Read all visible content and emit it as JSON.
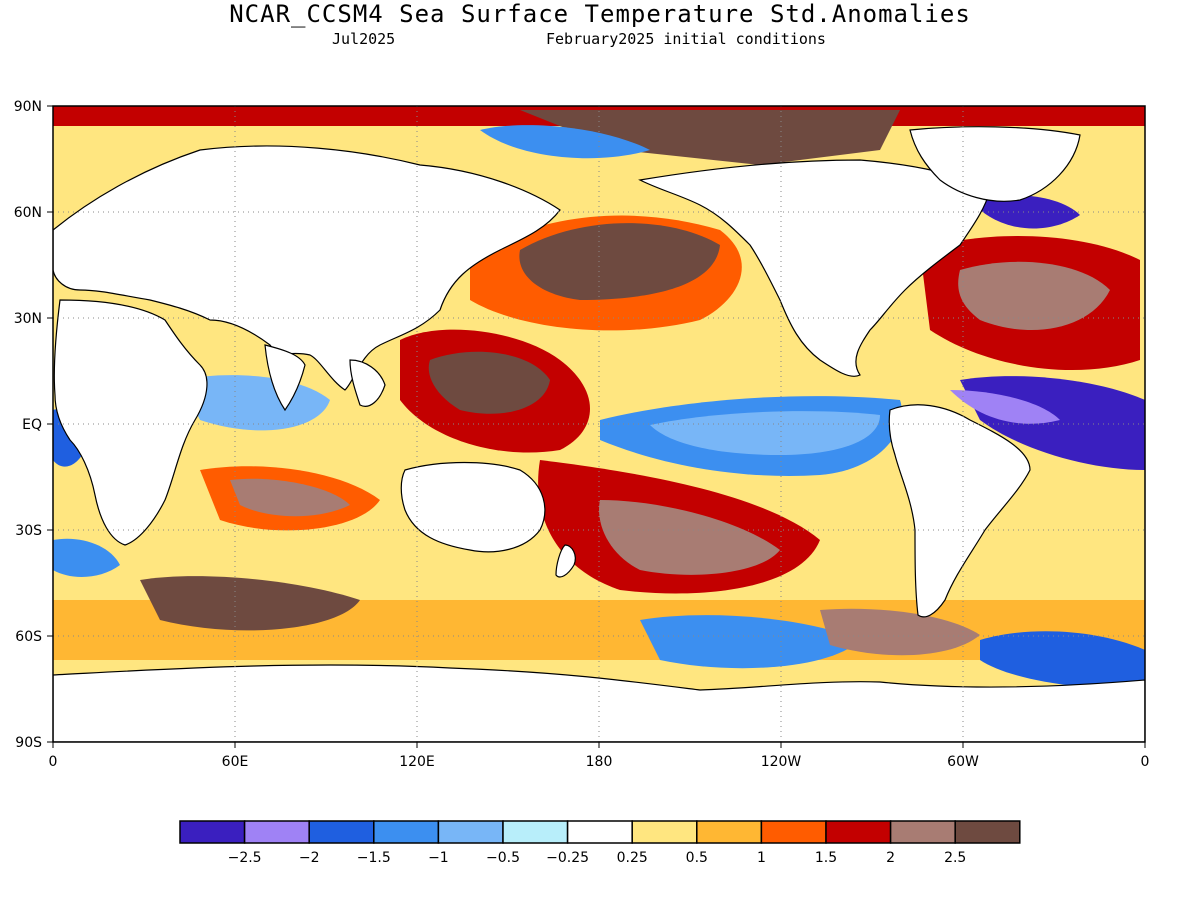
{
  "header": {
    "title": "NCAR_CCSM4 Sea Surface Temperature Std.Anomalies",
    "valid_month": "Jul2025",
    "init_conditions": "February2025 initial conditions"
  },
  "map": {
    "y_ticks": [
      "90N",
      "60N",
      "30N",
      "EQ",
      "30S",
      "60S",
      "90S"
    ],
    "x_ticks": [
      "0",
      "60E",
      "120E",
      "180",
      "120W",
      "60W",
      "0"
    ],
    "lon_range": [
      0,
      360
    ],
    "lat_range": [
      -90,
      90
    ],
    "grid": "dotted"
  },
  "colorbar": {
    "colors": [
      "#3a1fbf",
      "#9f82f5",
      "#1f5fe0",
      "#3c8ff0",
      "#78b6f7",
      "#b8eefa",
      "#ffffff",
      "#ffe680",
      "#ffb733",
      "#ff5c00",
      "#c30000",
      "#a87c73",
      "#6e4a40"
    ],
    "labels": [
      "−2.5",
      "−2",
      "−1.5",
      "−1",
      "−0.5",
      "−0.25",
      "0.25",
      "0.5",
      "1",
      "1.5",
      "2",
      "2.5"
    ]
  }
}
